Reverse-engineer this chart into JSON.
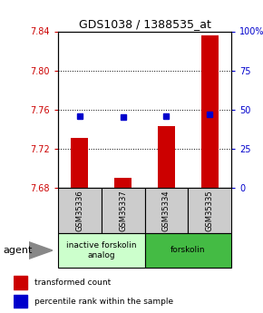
{
  "title": "GDS1038 / 1388535_at",
  "samples": [
    "GSM35336",
    "GSM35337",
    "GSM35334",
    "GSM35335"
  ],
  "bar_values": [
    7.731,
    7.69,
    7.743,
    7.836
  ],
  "bar_base": 7.68,
  "percentile_values": [
    46,
    45,
    46,
    47
  ],
  "ylim_left": [
    7.68,
    7.84
  ],
  "ylim_right": [
    0,
    100
  ],
  "yticks_left": [
    7.68,
    7.72,
    7.76,
    7.8,
    7.84
  ],
  "yticks_right": [
    0,
    25,
    50,
    75,
    100
  ],
  "bar_color": "#cc0000",
  "percentile_color": "#0000cc",
  "bar_width": 0.4,
  "agent_groups": [
    {
      "label": "inactive forskolin\nanalog",
      "color": "#ccffcc",
      "cols": [
        0,
        1
      ]
    },
    {
      "label": "forskolin",
      "color": "#44bb44",
      "cols": [
        2,
        3
      ]
    }
  ],
  "sample_box_color": "#cccccc",
  "grid_color": "#000000",
  "background_color": "#ffffff",
  "left_tick_color": "#cc0000",
  "right_tick_color": "#0000cc",
  "legend_red_label": "transformed count",
  "legend_blue_label": "percentile rank within the sample",
  "agent_label": "agent",
  "title_fontsize": 9,
  "tick_fontsize": 7,
  "sample_fontsize": 6,
  "agent_fontsize": 8,
  "legend_fontsize": 6.5
}
